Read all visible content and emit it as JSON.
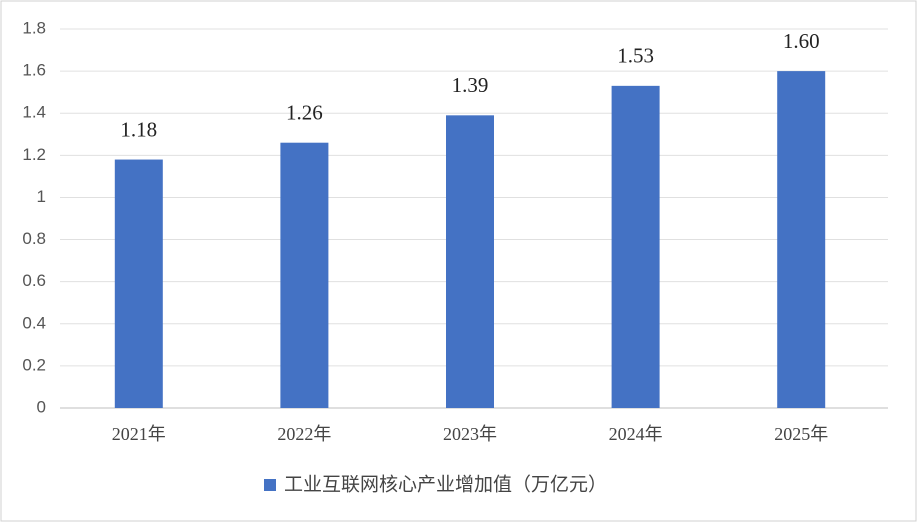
{
  "chart_data": {
    "type": "bar",
    "categories": [
      "2021年",
      "2022年",
      "2023年",
      "2024年",
      "2025年"
    ],
    "series": [
      {
        "name": "工业互联网核心产业增加值（万亿元）",
        "color": "#4472c4",
        "values": [
          1.18,
          1.26,
          1.39,
          1.53,
          1.6
        ],
        "value_labels": [
          "1.18",
          "1.26",
          "1.39",
          "1.53",
          "1.60"
        ]
      }
    ],
    "ylim": [
      0,
      1.8
    ],
    "yticks": [
      0,
      0.2,
      0.4,
      0.6,
      0.8,
      1,
      1.2,
      1.4,
      1.6,
      1.8
    ],
    "grid": true,
    "legend": "bottom"
  }
}
